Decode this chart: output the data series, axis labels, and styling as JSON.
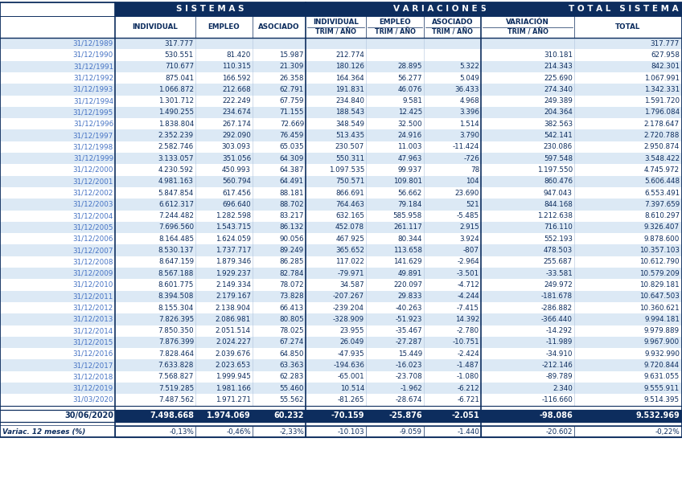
{
  "rows": [
    [
      "31/12/1989",
      "317.777",
      "",
      "",
      "",
      "",
      "",
      "",
      "317.777"
    ],
    [
      "31/12/1990",
      "530.551",
      "81.420",
      "15.987",
      "212.774",
      "",
      "",
      "310.181",
      "627.958"
    ],
    [
      "31/12/1991",
      "710.677",
      "110.315",
      "21.309",
      "180.126",
      "28.895",
      "5.322",
      "214.343",
      "842.301"
    ],
    [
      "31/12/1992",
      "875.041",
      "166.592",
      "26.358",
      "164.364",
      "56.277",
      "5.049",
      "225.690",
      "1.067.991"
    ],
    [
      "31/12/1993",
      "1.066.872",
      "212.668",
      "62.791",
      "191.831",
      "46.076",
      "36.433",
      "274.340",
      "1.342.331"
    ],
    [
      "31/12/1994",
      "1.301.712",
      "222.249",
      "67.759",
      "234.840",
      "9.581",
      "4.968",
      "249.389",
      "1.591.720"
    ],
    [
      "31/12/1995",
      "1.490.255",
      "234.674",
      "71.155",
      "188.543",
      "12.425",
      "3.396",
      "204.364",
      "1.796.084"
    ],
    [
      "31/12/1996",
      "1.838.804",
      "267.174",
      "72.669",
      "348.549",
      "32.500",
      "1.514",
      "382.563",
      "2.178.647"
    ],
    [
      "31/12/1997",
      "2.352.239",
      "292.090",
      "76.459",
      "513.435",
      "24.916",
      "3.790",
      "542.141",
      "2.720.788"
    ],
    [
      "31/12/1998",
      "2.582.746",
      "303.093",
      "65.035",
      "230.507",
      "11.003",
      "-11.424",
      "230.086",
      "2.950.874"
    ],
    [
      "31/12/1999",
      "3.133.057",
      "351.056",
      "64.309",
      "550.311",
      "47.963",
      "-726",
      "597.548",
      "3.548.422"
    ],
    [
      "31/12/2000",
      "4.230.592",
      "450.993",
      "64.387",
      "1.097.535",
      "99.937",
      "78",
      "1.197.550",
      "4.745.972"
    ],
    [
      "31/12/2001",
      "4.981.163",
      "560.794",
      "64.491",
      "750.571",
      "109.801",
      "104",
      "860.476",
      "5.606.448"
    ],
    [
      "31/12/2002",
      "5.847.854",
      "617.456",
      "88.181",
      "866.691",
      "56.662",
      "23.690",
      "947.043",
      "6.553.491"
    ],
    [
      "31/12/2003",
      "6.612.317",
      "696.640",
      "88.702",
      "764.463",
      "79.184",
      "521",
      "844.168",
      "7.397.659"
    ],
    [
      "31/12/2004",
      "7.244.482",
      "1.282.598",
      "83.217",
      "632.165",
      "585.958",
      "-5.485",
      "1.212.638",
      "8.610.297"
    ],
    [
      "31/12/2005",
      "7.696.560",
      "1.543.715",
      "86.132",
      "452.078",
      "261.117",
      "2.915",
      "716.110",
      "9.326.407"
    ],
    [
      "31/12/2006",
      "8.164.485",
      "1.624.059",
      "90.056",
      "467.925",
      "80.344",
      "3.924",
      "552.193",
      "9.878.600"
    ],
    [
      "31/12/2007",
      "8.530.137",
      "1.737.717",
      "89.249",
      "365.652",
      "113.658",
      "-807",
      "478.503",
      "10.357.103"
    ],
    [
      "31/12/2008",
      "8.647.159",
      "1.879.346",
      "86.285",
      "117.022",
      "141.629",
      "-2.964",
      "255.687",
      "10.612.790"
    ],
    [
      "31/12/2009",
      "8.567.188",
      "1.929.237",
      "82.784",
      "-79.971",
      "49.891",
      "-3.501",
      "-33.581",
      "10.579.209"
    ],
    [
      "31/12/2010",
      "8.601.775",
      "2.149.334",
      "78.072",
      "34.587",
      "220.097",
      "-4.712",
      "249.972",
      "10.829.181"
    ],
    [
      "31/12/2011",
      "8.394.508",
      "2.179.167",
      "73.828",
      "-207.267",
      "29.833",
      "-4.244",
      "-181.678",
      "10.647.503"
    ],
    [
      "31/12/2012",
      "8.155.304",
      "2.138.904",
      "66.413",
      "-239.204",
      "-40.263",
      "-7.415",
      "-286.882",
      "10.360.621"
    ],
    [
      "31/12/2013",
      "7.826.395",
      "2.086.981",
      "80.805",
      "-328.909",
      "-51.923",
      "14.392",
      "-366.440",
      "9.994.181"
    ],
    [
      "31/12/2014",
      "7.850.350",
      "2.051.514",
      "78.025",
      "23.955",
      "-35.467",
      "-2.780",
      "-14.292",
      "9.979.889"
    ],
    [
      "31/12/2015",
      "7.876.399",
      "2.024.227",
      "67.274",
      "26.049",
      "-27.287",
      "-10.751",
      "-11.989",
      "9.967.900"
    ],
    [
      "31/12/2016",
      "7.828.464",
      "2.039.676",
      "64.850",
      "-47.935",
      "15.449",
      "-2.424",
      "-34.910",
      "9.932.990"
    ],
    [
      "31/12/2017",
      "7.633.828",
      "2.023.653",
      "63.363",
      "-194.636",
      "-16.023",
      "-1.487",
      "-212.146",
      "9.720.844"
    ],
    [
      "31/12/2018",
      "7.568.827",
      "1.999.945",
      "62.283",
      "-65.001",
      "-23.708",
      "-1.080",
      "-89.789",
      "9.631.055"
    ],
    [
      "31/12/2019",
      "7.519.285",
      "1.981.166",
      "55.460",
      "10.514",
      "-1.962",
      "-6.212",
      "2.340",
      "9.555.911"
    ],
    [
      "31/03/2020",
      "7.487.562",
      "1.971.271",
      "55.562",
      "-81.265",
      "-28.674",
      "-6.721",
      "-116.660",
      "9.514.395"
    ]
  ],
  "highlight_row": [
    "30/06/2020",
    "7.498.668",
    "1.974.069",
    "60.232",
    "-70.159",
    "-25.876",
    "-2.051",
    "-98.086",
    "9.532.969"
  ],
  "variac_row": [
    "Variac. 12 meses (%)",
    "-0,13%",
    "-0,46%",
    "-2,33%",
    "-10.103",
    "-9.059",
    "-1.440",
    "-20.602",
    "-0,22%"
  ],
  "header_bg": "#0d2d5e",
  "header_text": "#ffffff",
  "subheader_text": "#0d2d5e",
  "row_bg_even": "#dce9f5",
  "row_bg_odd": "#ffffff",
  "date_text": "#4472c4",
  "data_text": "#0d2d5e",
  "border_color": "#0d2d5e"
}
